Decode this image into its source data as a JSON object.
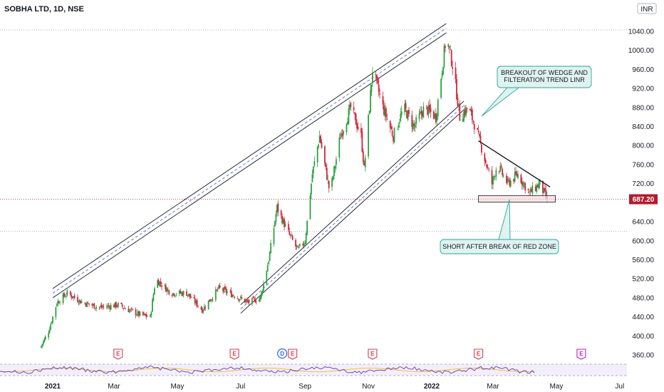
{
  "header": {
    "title": "SOBHA LTD, 1D, NSE",
    "currency": "INR"
  },
  "colors": {
    "up": "#26a69a",
    "up_body": "#2ea043",
    "down": "#d0243c",
    "accent": "#b31b2c",
    "callout_fill": "#dff3f0",
    "callout_border": "#26a69a",
    "zone_fill": "#f3d9dc"
  },
  "chart_data": {
    "type": "candlestick",
    "title": "SOBHA LTD, 1D, NSE",
    "ylim": [
      340,
      1060
    ],
    "y_ticks": [
      "1040.00",
      "1000.00",
      "960.00",
      "920.00",
      "880.00",
      "840.00",
      "800.00",
      "760.00",
      "720.00",
      "680.00",
      "640.00",
      "600.00",
      "560.00",
      "520.00",
      "480.00",
      "440.00",
      "400.00",
      "360.00"
    ],
    "x_ticks": [
      "2021",
      "Mar",
      "May",
      "Jul",
      "Sep",
      "Nov",
      "2022",
      "Mar",
      "May",
      "Jul"
    ],
    "last_price": "687.20",
    "price_path": [
      [
        "2020-12-20",
        375
      ],
      [
        "2020-12-28",
        410
      ],
      [
        "2021-01-05",
        470
      ],
      [
        "2021-01-15",
        490
      ],
      [
        "2021-01-30",
        470
      ],
      [
        "2021-02-15",
        460
      ],
      [
        "2021-03-05",
        465
      ],
      [
        "2021-03-25",
        445
      ],
      [
        "2021-04-05",
        440
      ],
      [
        "2021-04-10",
        520
      ],
      [
        "2021-04-25",
        490
      ],
      [
        "2021-05-10",
        490
      ],
      [
        "2021-05-25",
        455
      ],
      [
        "2021-06-10",
        500
      ],
      [
        "2021-06-25",
        485
      ],
      [
        "2021-07-08",
        470
      ],
      [
        "2021-07-20",
        480
      ],
      [
        "2021-07-28",
        560
      ],
      [
        "2021-08-05",
        670
      ],
      [
        "2021-08-15",
        620
      ],
      [
        "2021-08-25",
        580
      ],
      [
        "2021-09-01",
        600
      ],
      [
        "2021-09-08",
        740
      ],
      [
        "2021-09-15",
        820
      ],
      [
        "2021-09-25",
        700
      ],
      [
        "2021-10-05",
        820
      ],
      [
        "2021-10-15",
        880
      ],
      [
        "2021-10-25",
        820
      ],
      [
        "2021-10-28",
        750
      ],
      [
        "2021-11-05",
        960
      ],
      [
        "2021-11-15",
        880
      ],
      [
        "2021-11-25",
        820
      ],
      [
        "2021-12-05",
        880
      ],
      [
        "2021-12-15",
        840
      ],
      [
        "2021-12-25",
        880
      ],
      [
        "2022-01-05",
        860
      ],
      [
        "2022-01-15",
        1030
      ],
      [
        "2022-01-22",
        960
      ],
      [
        "2022-01-28",
        860
      ],
      [
        "2022-02-05",
        880
      ],
      [
        "2022-02-12",
        840
      ],
      [
        "2022-02-20",
        780
      ],
      [
        "2022-02-28",
        720
      ],
      [
        "2022-03-05",
        760
      ],
      [
        "2022-03-15",
        720
      ],
      [
        "2022-03-25",
        740
      ],
      [
        "2022-04-05",
        700
      ],
      [
        "2022-04-15",
        720
      ],
      [
        "2022-04-22",
        687.2
      ]
    ],
    "channel": {
      "upper": [
        [
          "2021-01-01",
          495
        ],
        [
          "2022-01-15",
          1052
        ]
      ],
      "lower": [
        [
          "2021-07-01",
          452
        ],
        [
          "2022-02-01",
          880
        ]
      ]
    },
    "wedge_resistance": [
      [
        "2022-02-15",
        810
      ],
      [
        "2022-04-25",
        713
      ]
    ],
    "support_zone": {
      "x0": "2022-02-15",
      "x1": "2022-04-30",
      "y0": 681,
      "y1": 695
    },
    "events": [
      {
        "label": "E",
        "date": "2021-03-05"
      },
      {
        "label": "E",
        "date": "2021-06-25"
      },
      {
        "label": "D",
        "date": "2021-08-10"
      },
      {
        "label": "E",
        "date": "2021-08-20"
      },
      {
        "label": "E",
        "date": "2021-11-05"
      },
      {
        "label": "E",
        "date": "2022-02-15"
      },
      {
        "label": "E",
        "date": "2022-05-25"
      }
    ],
    "annotations": [
      {
        "lines": [
          "BREAKOUT OF WEDGE AND",
          "FILTERATION TREND LINR"
        ]
      },
      {
        "lines": [
          "SHORT AFTER BREAK OF RED ZONE"
        ]
      }
    ]
  }
}
